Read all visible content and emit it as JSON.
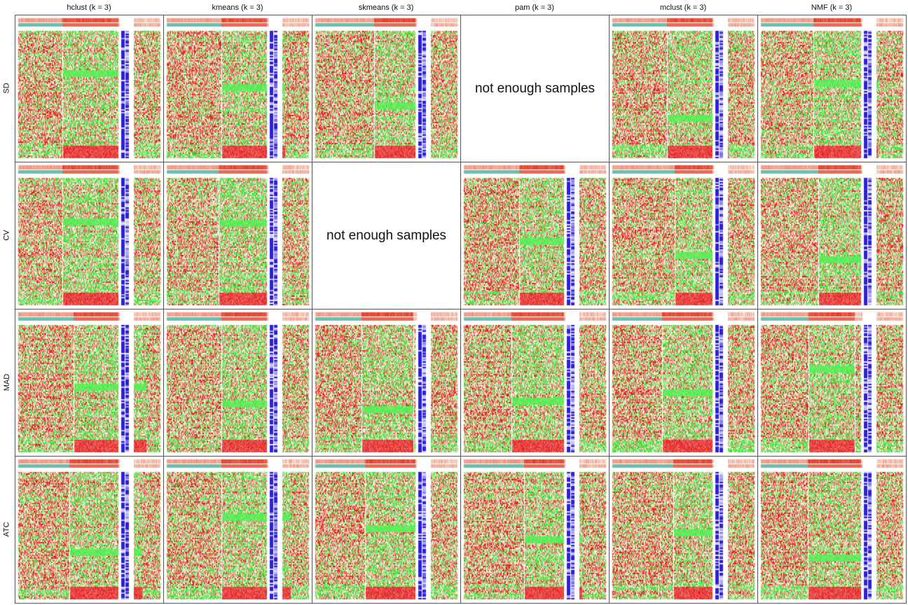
{
  "chart_data": {
    "type": "heatmap",
    "columns": [
      {
        "method": "hclust",
        "label": "hclust (k = 3)"
      },
      {
        "method": "kmeans",
        "label": "kmeans (k = 3)"
      },
      {
        "method": "skmeans",
        "label": "skmeans (k = 3)"
      },
      {
        "method": "pam",
        "label": "pam (k = 3)"
      },
      {
        "method": "mclust",
        "label": "mclust (k = 3)"
      },
      {
        "method": "NMF",
        "label": "NMF (k = 3)"
      }
    ],
    "rows": [
      {
        "label": "SD"
      },
      {
        "label": "CV"
      },
      {
        "label": "MAD"
      },
      {
        "label": "ATC"
      }
    ],
    "k": 3,
    "empty_cells": [
      {
        "row": "SD",
        "column": "pam",
        "text": "not enough samples"
      },
      {
        "row": "CV",
        "column": "skmeans",
        "text": "not enough samples"
      }
    ],
    "palette": {
      "high": "#e31a1c",
      "mid": "#fdf5e6",
      "low": "#2ee82e",
      "annotation_blue": "#2c1ee6",
      "annotation_teal": "#6cc0ae",
      "annotation_red": "#e23b24"
    }
  }
}
